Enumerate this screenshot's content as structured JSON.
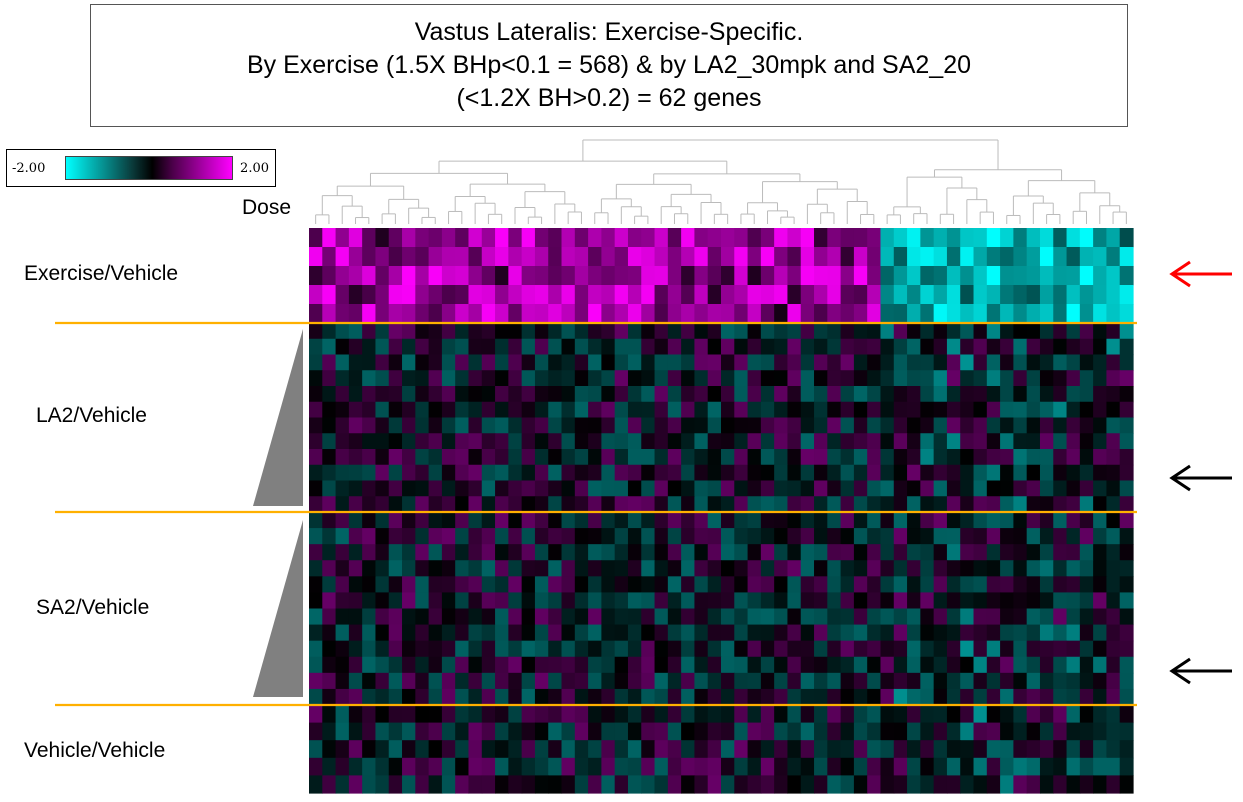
{
  "title": {
    "line1": "Vastus Lateralis: Exercise-Specific.",
    "line2": "By Exercise (1.5X BHp<0.1 = 568) & by LA2_30mpk and SA2_20",
    "line3": "(<1.2X BH>0.2) = 62 genes"
  },
  "legend": {
    "min_label": "-2.00",
    "max_label": "2.00"
  },
  "dose_label": "Dose",
  "colors": {
    "low": "#00ffff",
    "mid": "#000000",
    "high": "#ff00ff",
    "separator": "#ffb000",
    "highlight_arrow": "#ff0000",
    "arrow": "#000000",
    "dose_wedge": "#808080",
    "dendrogram": "#bbbbbb"
  },
  "chart_data": {
    "type": "heatmap",
    "columns": 62,
    "value_range": [
      -2,
      2
    ],
    "groups": [
      {
        "label": "Exercise/Vehicle",
        "rows": 5,
        "arrow": "red"
      },
      {
        "label": "LA2/Vehicle",
        "rows": 12,
        "arrow": "black"
      },
      {
        "label": "SA2/Vehicle",
        "rows": 12,
        "arrow": "black"
      },
      {
        "label": "Vehicle/Vehicle",
        "rows": 5,
        "arrow": "none"
      }
    ],
    "column_clusters": [
      {
        "columns": [
          1,
          43
        ],
        "exercise_effect": "up"
      },
      {
        "columns": [
          44,
          62
        ],
        "exercise_effect": "down"
      }
    ],
    "row_value_profile": "Exercise/Vehicle rows strongly up (~+1 to +2) in cluster 1 and down (~-1 to -2) in cluster 2; LA2, SA2 and Vehicle rows near zero (about -0.8 to +0.8)"
  }
}
